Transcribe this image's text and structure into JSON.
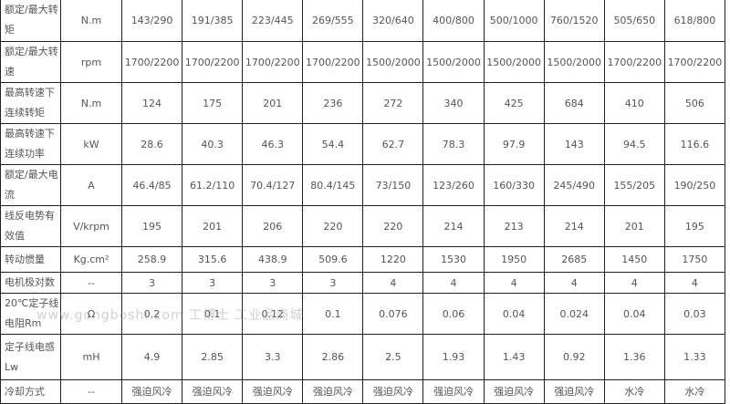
{
  "rows": [
    {
      "label": "额定/最大转矩",
      "unit": "N.m",
      "values": [
        "143/290",
        "191/385",
        "223/445",
        "269/555",
        "320/640",
        "400/800",
        "500/1000",
        "760/1520",
        "505/650",
        "618/800"
      ]
    },
    {
      "label": "额定/最大转速",
      "unit": "rpm",
      "values": [
        "1700/2200",
        "1700/2200",
        "1700/2200",
        "1700/2200",
        "1500/2000",
        "1500/2000",
        "1500/2000",
        "1500/2000",
        "1700/2200",
        "1700/2200"
      ]
    },
    {
      "label": "最高转速下连续转矩",
      "unit": "N.m",
      "values": [
        "124",
        "175",
        "201",
        "236",
        "272",
        "340",
        "425",
        "684",
        "410",
        "506"
      ]
    },
    {
      "label": "最高转速下连续功率",
      "unit": "kW",
      "values": [
        "28.6",
        "40.3",
        "46.3",
        "54.4",
        "62.7",
        "78.3",
        "97.9",
        "143",
        "94.5",
        "116.6"
      ]
    },
    {
      "label": "额定/最大电流",
      "unit": "A",
      "values": [
        "46.4/85",
        "61.2/110",
        "70.4/127",
        "80.4/145",
        "73/150",
        "123/260",
        "160/330",
        "245/490",
        "155/205",
        "190/250"
      ]
    },
    {
      "label": "线反电势有效值",
      "unit": "V/krpm",
      "values": [
        "195",
        "201",
        "206",
        "220",
        "220",
        "214",
        "213",
        "214",
        "201",
        "195"
      ]
    },
    {
      "label": "转动惯量",
      "unit": "Kg.cm²",
      "values": [
        "258.9",
        "315.6",
        "438.9",
        "509.6",
        "1220",
        "1530",
        "1950",
        "2685",
        "1450",
        "1750"
      ]
    },
    {
      "label": "电机极对数",
      "unit": "--",
      "values": [
        "3",
        "3",
        "3",
        "3",
        "4",
        "4",
        "4",
        "4",
        "4",
        "4"
      ]
    },
    {
      "label": "20℃定子线电阻Rm",
      "unit": "Ω",
      "values": [
        "0.2",
        "0.1",
        "0.12",
        "0.1",
        "0.076",
        "0.06",
        "0.04",
        "0.024",
        "0.04",
        "0.03"
      ]
    },
    {
      "label": "定子线电感Lw",
      "unit": "mH",
      "values": [
        "4.9",
        "2.85",
        "3.3",
        "2.86",
        "2.5",
        "1.93",
        "1.43",
        "0.92",
        "1.36",
        "1.33"
      ]
    },
    {
      "label": "冷却方式",
      "unit": "--",
      "values": [
        "强迫风冷",
        "强迫风冷",
        "强迫风冷",
        "强迫风冷",
        "强迫风冷",
        "强迫风冷",
        "强迫风冷",
        "强迫风冷",
        "水冷",
        "水冷"
      ]
    }
  ],
  "watermark": "www.gongboshi.com 工博士 工业品商城"
}
